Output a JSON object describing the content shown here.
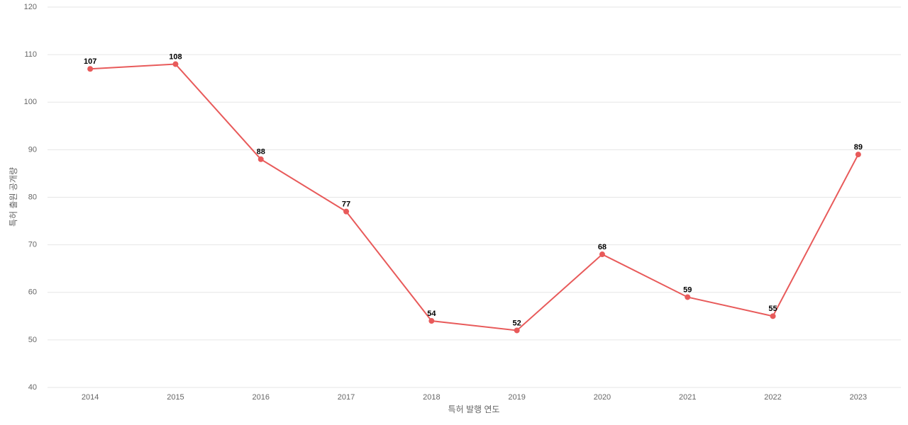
{
  "chart_data": {
    "type": "line",
    "x_label": "특허 발행 연도",
    "y_label": "특허 출원 공개량",
    "categories": [
      "2014",
      "2015",
      "2016",
      "2017",
      "2018",
      "2019",
      "2020",
      "2021",
      "2022",
      "2023"
    ],
    "series": [
      {
        "name": "특허 출원 공개량",
        "color": "#e85a5a",
        "values": [
          107,
          108,
          88,
          77,
          54,
          52,
          68,
          59,
          55,
          89
        ]
      }
    ],
    "ylim": [
      40,
      120
    ],
    "yticks": [
      40,
      50,
      60,
      70,
      80,
      90,
      100,
      110,
      120
    ],
    "grid": true
  }
}
